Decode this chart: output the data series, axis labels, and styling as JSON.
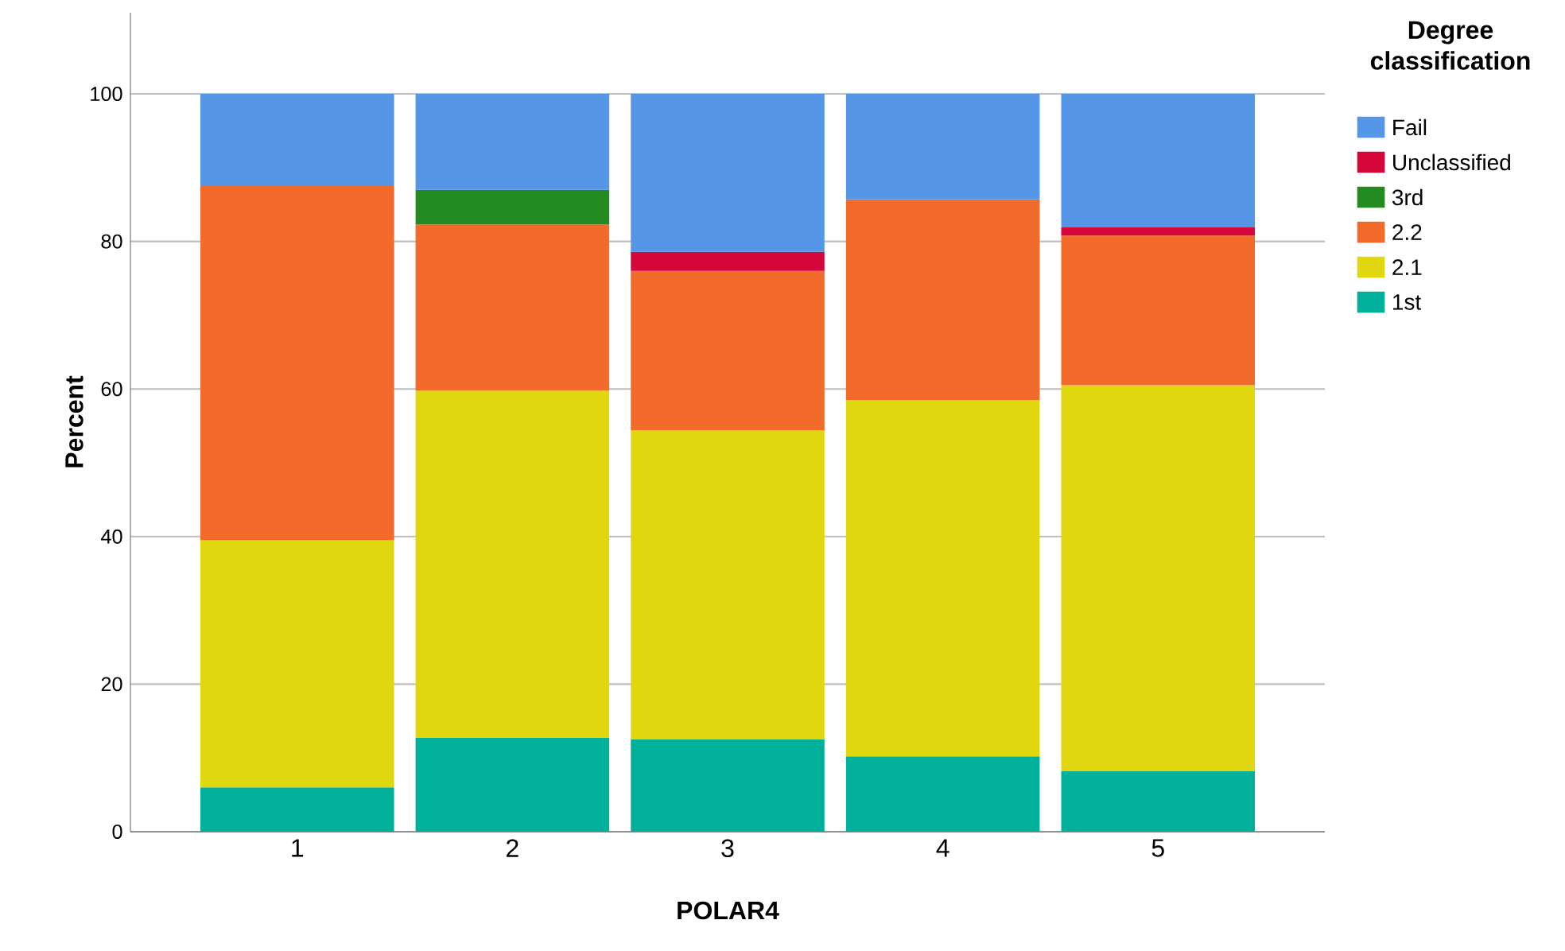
{
  "chart_data": {
    "type": "bar",
    "stacked": true,
    "xlabel": "POLAR4",
    "ylabel": "Percent",
    "legend_title": "Degree classification",
    "legend": "right",
    "grid": "y",
    "categories": [
      "1",
      "2",
      "3",
      "4",
      "5"
    ],
    "ylim": [
      0,
      111
    ],
    "yticks": [
      0,
      20,
      40,
      60,
      80,
      100
    ],
    "series": [
      {
        "name": "1st",
        "color": "#00b09b",
        "values": [
          6.0,
          12.7,
          12.5,
          10.2,
          8.2
        ]
      },
      {
        "name": "2.1",
        "color": "#e1d70f",
        "values": [
          33.5,
          47.1,
          41.9,
          48.3,
          52.3
        ]
      },
      {
        "name": "2.2",
        "color": "#f26b2b",
        "values": [
          48.0,
          22.5,
          21.6,
          27.2,
          20.3
        ]
      },
      {
        "name": "3rd",
        "color": "#238b21",
        "values": [
          null,
          4.7,
          null,
          null,
          null
        ]
      },
      {
        "name": "Unclassified",
        "color": "#d6083b",
        "values": [
          null,
          null,
          2.6,
          null,
          1.1
        ]
      },
      {
        "name": "Fail",
        "color": "#5596e6",
        "values": [
          12.5,
          13.0,
          21.4,
          14.3,
          18.1
        ]
      }
    ]
  }
}
